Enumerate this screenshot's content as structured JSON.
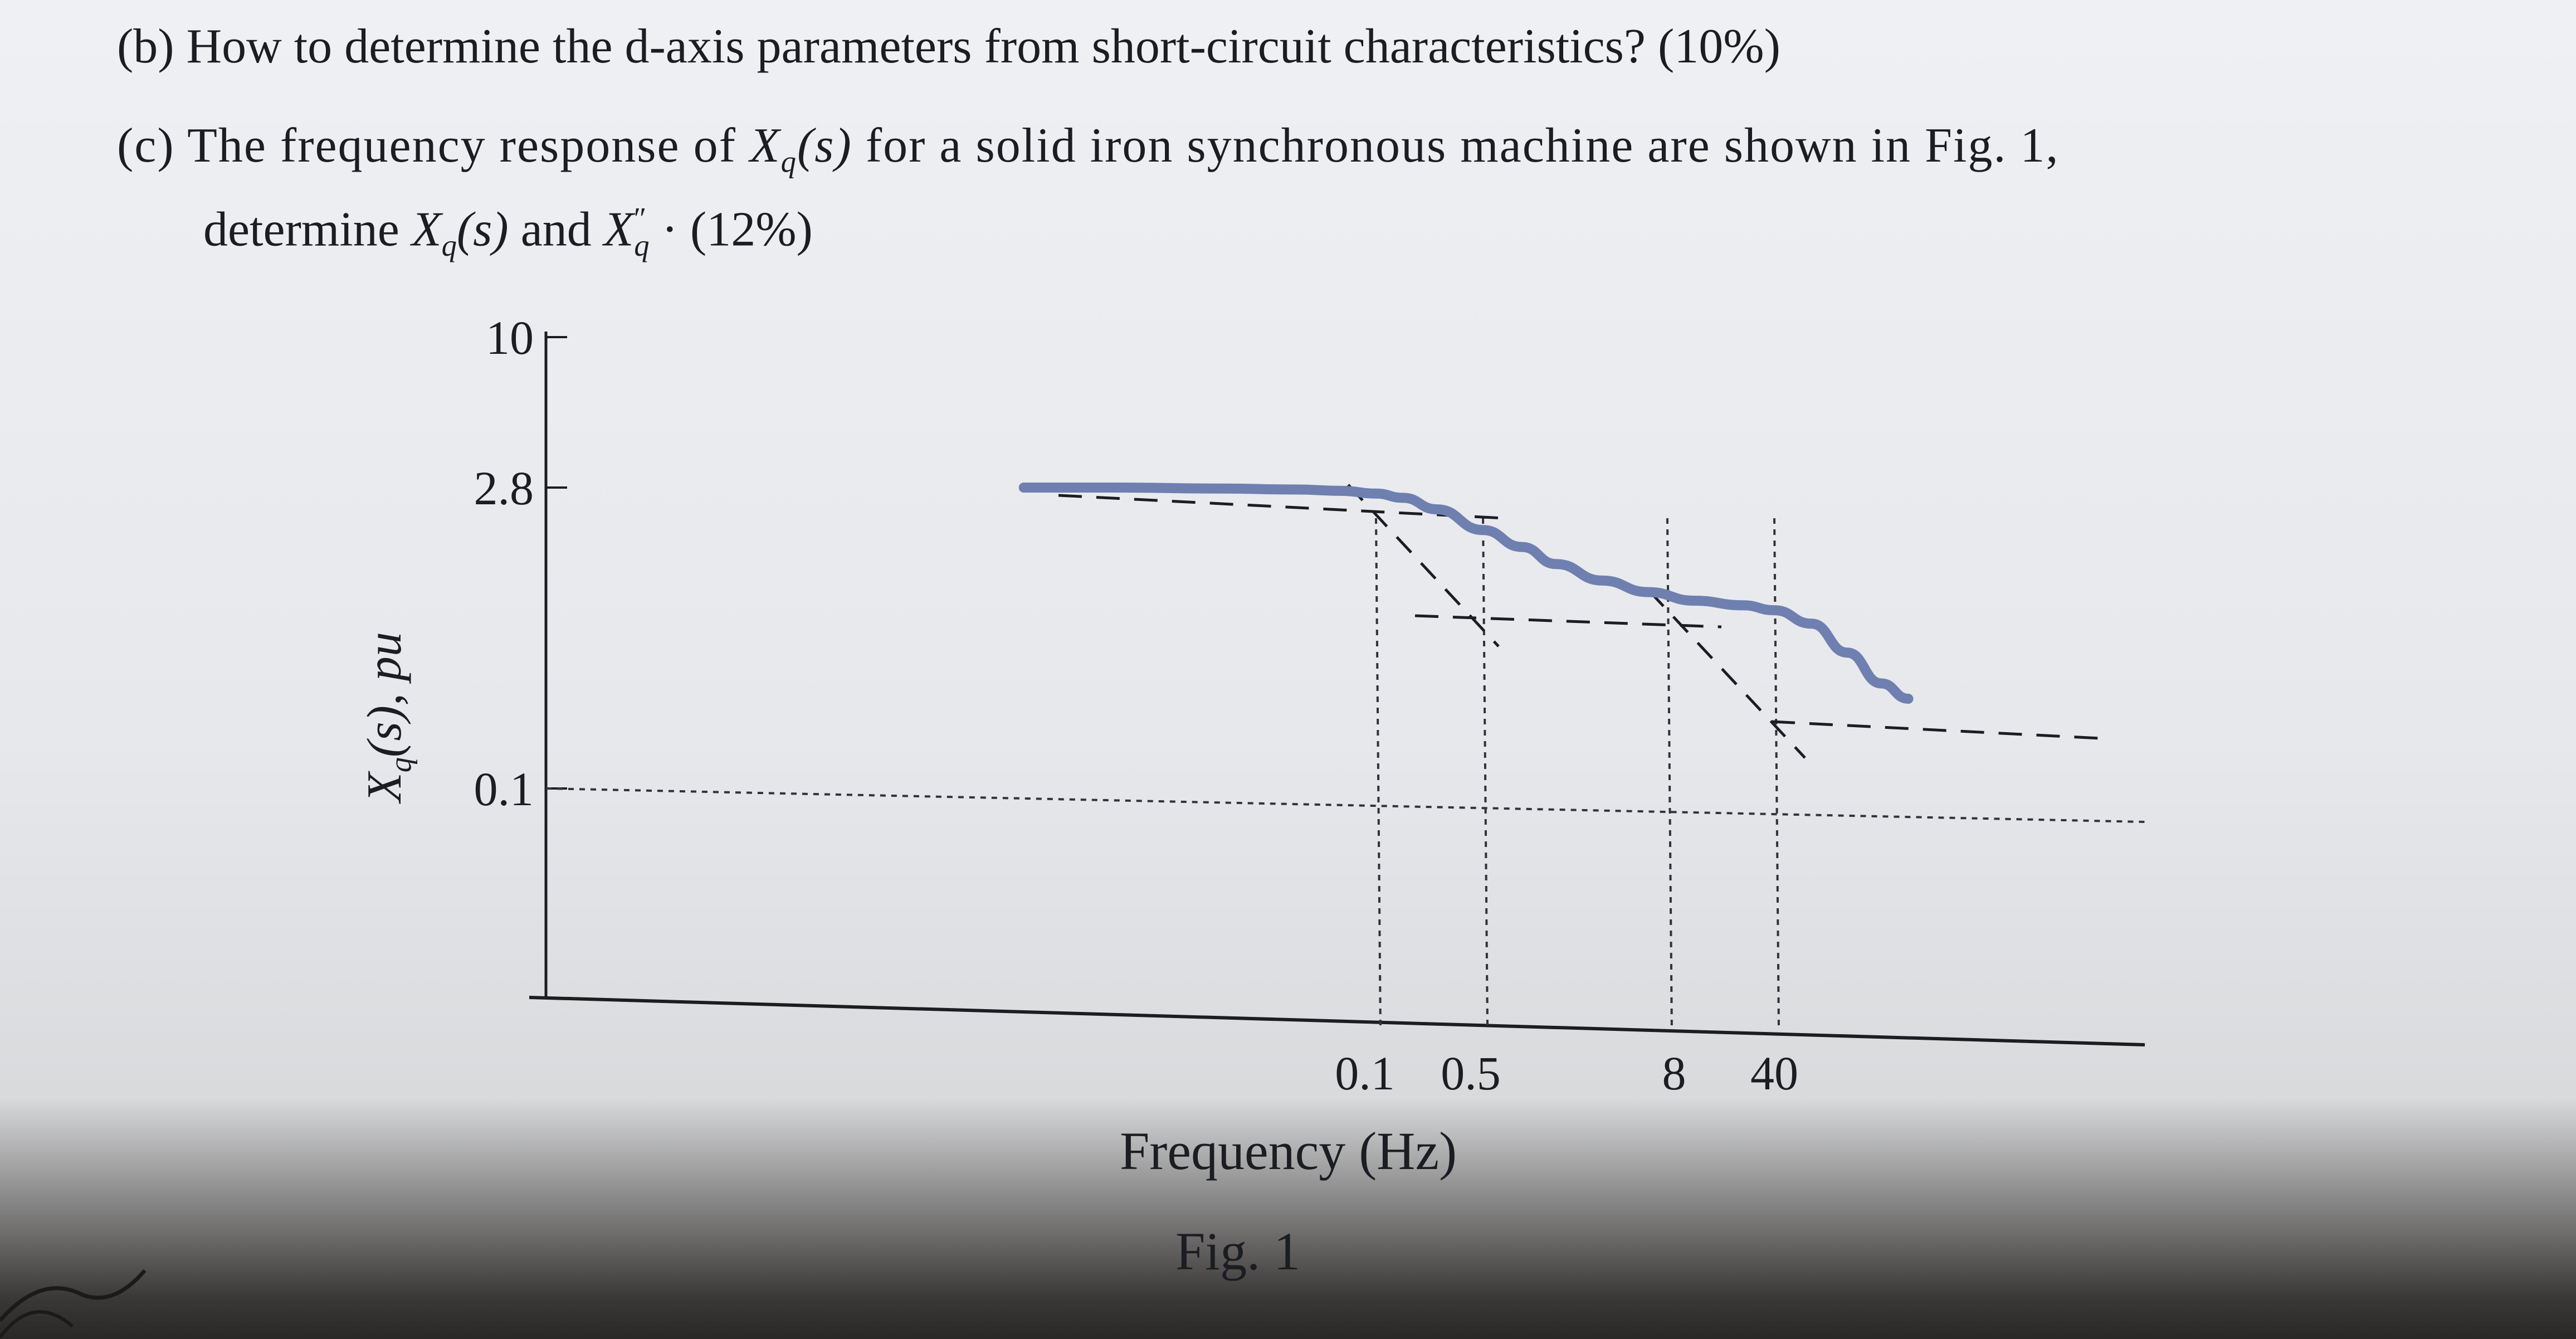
{
  "question_b": "(b) How to determine the d-axis parameters from short-circuit characteristics? (10%)",
  "question_c": {
    "prefix": "(c) The frequency response of",
    "x": "X",
    "q": "q",
    "s": "(s)",
    "middle": "for a solid iron synchronous machine are shown in Fig. 1,",
    "line2_prefix": "determine",
    "and": "and",
    "dprime": "″",
    "line2_suffix": "· (12%)"
  },
  "chart_data": {
    "type": "line",
    "title": "",
    "xlabel": "Frequency (Hz)",
    "ylabel": "X_q(s), pu",
    "ylabel_parts": {
      "x": "X",
      "q": "q",
      "s": "(s), pu"
    },
    "caption": "Fig. 1",
    "y_ticks": [
      "10",
      "2.8",
      "0.1"
    ],
    "x_ticks": [
      "0.1",
      "0.5",
      "8",
      "40"
    ],
    "x_scale": "log",
    "y_scale": "log",
    "breakpoint_frequencies_hz": [
      0.1,
      0.5,
      8,
      40
    ],
    "asymptote_levels": [
      "2.8",
      "",
      ""
    ],
    "series": [
      {
        "color": "#6f7fb0",
        "x": [
          0.0005,
          0.002,
          0.01,
          0.03,
          0.06,
          0.1,
          0.15,
          0.25,
          0.5,
          0.9,
          1.5,
          3,
          6,
          12,
          25,
          40,
          70,
          120,
          200,
          300
        ],
        "y": [
          2.8,
          2.8,
          2.77,
          2.74,
          2.7,
          2.62,
          2.5,
          2.2,
          1.75,
          1.45,
          1.2,
          1.0,
          0.88,
          0.8,
          0.76,
          0.72,
          0.62,
          0.45,
          0.32,
          0.27
        ]
      }
    ],
    "grid": false,
    "legend": "none"
  }
}
